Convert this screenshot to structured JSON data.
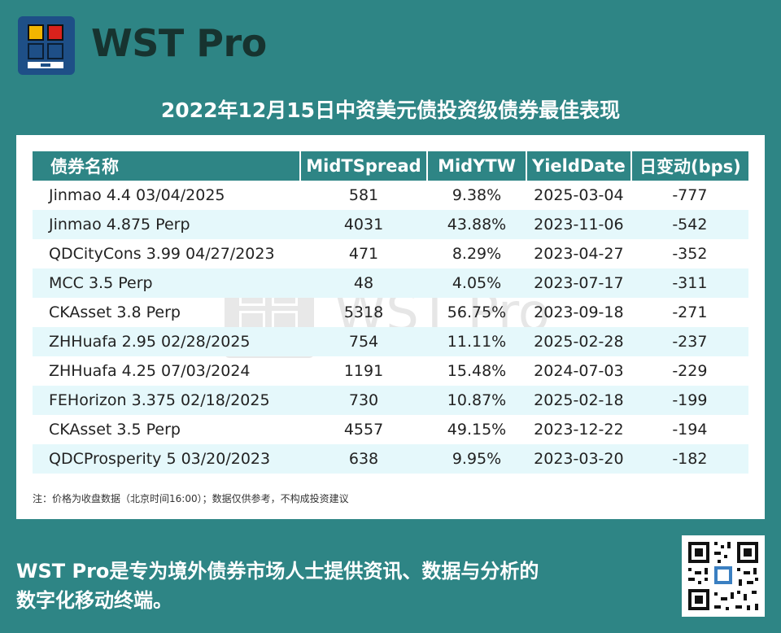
{
  "brand": {
    "name": "WST Pro"
  },
  "title": "2022年12月15日中资美元债投资级债券最佳表现",
  "table": {
    "headers": [
      "债券名称",
      "MidTSpread",
      "MidYTW",
      "YieldDate",
      "日变动(bps)"
    ],
    "rows": [
      {
        "name": "Jinmao 4.4 03/04/2025",
        "spread": "581",
        "ytw": "9.38%",
        "date": "2025-03-04",
        "change": "-777"
      },
      {
        "name": "Jinmao 4.875 Perp",
        "spread": "4031",
        "ytw": "43.88%",
        "date": "2023-11-06",
        "change": "-542"
      },
      {
        "name": "QDCityCons 3.99 04/27/2023",
        "spread": "471",
        "ytw": "8.29%",
        "date": "2023-04-27",
        "change": "-352"
      },
      {
        "name": "MCC 3.5 Perp",
        "spread": "48",
        "ytw": "4.05%",
        "date": "2023-07-17",
        "change": "-311"
      },
      {
        "name": "CKAsset 3.8 Perp",
        "spread": "5318",
        "ytw": "56.75%",
        "date": "2023-09-18",
        "change": "-271"
      },
      {
        "name": "ZHHuafa 2.95 02/28/2025",
        "spread": "754",
        "ytw": "11.11%",
        "date": "2025-02-28",
        "change": "-237"
      },
      {
        "name": "ZHHuafa 4.25 07/03/2024",
        "spread": "1191",
        "ytw": "15.48%",
        "date": "2024-07-03",
        "change": "-229"
      },
      {
        "name": "FEHorizon 3.375 02/18/2025",
        "spread": "730",
        "ytw": "10.87%",
        "date": "2025-02-18",
        "change": "-199"
      },
      {
        "name": "CKAsset 3.5 Perp",
        "spread": "4557",
        "ytw": "49.15%",
        "date": "2023-12-22",
        "change": "-194"
      },
      {
        "name": "QDCProsperity 5 03/20/2023",
        "spread": "638",
        "ytw": "9.95%",
        "date": "2023-03-20",
        "change": "-182"
      }
    ]
  },
  "note": "注：价格为收盘数据（北京时间16:00）；数据仅供参考，不构成投资建议",
  "watermark": "WST Pro",
  "slogan_line1": "WST Pro是专为境外债券市场人士提供资讯、数据与分析的",
  "slogan_line2": "数字化移动终端。",
  "colors": {
    "background": "#2e8585",
    "header": "#2e8585",
    "alt_row": "#e5f8fb"
  }
}
